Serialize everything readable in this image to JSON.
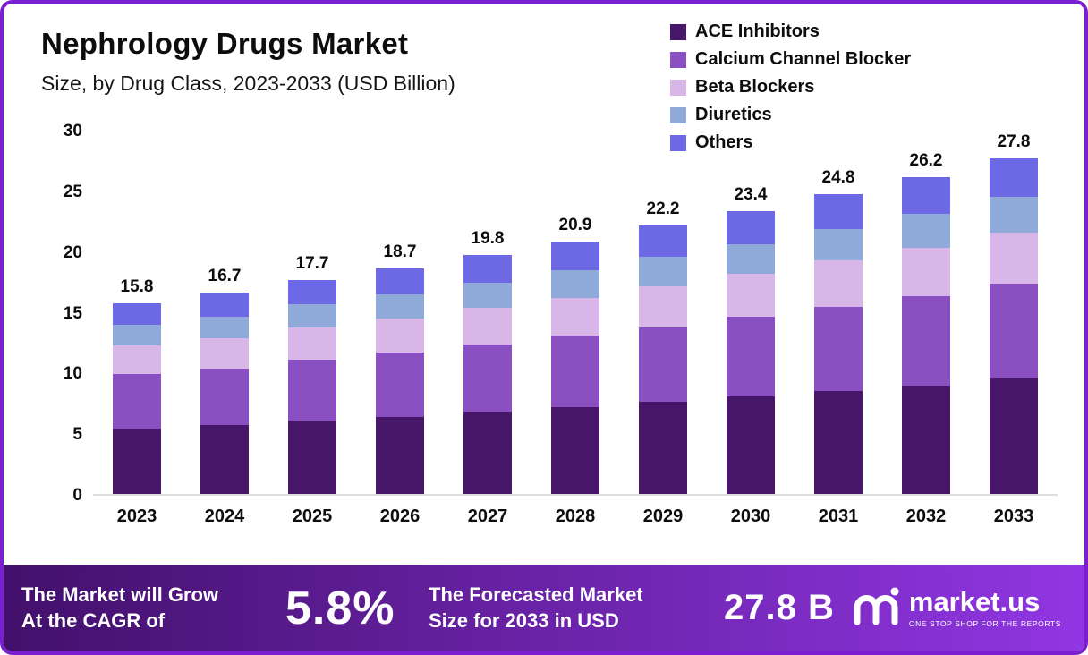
{
  "page": {
    "border_color": "#7a1fd0"
  },
  "header": {
    "title": "Nephrology Drugs Market",
    "subtitle": "Size, by Drug Class, 2023-2033 (USD Billion)"
  },
  "chart_data": {
    "type": "bar",
    "stacked": true,
    "title": "Nephrology Drugs Market Size, by Drug Class, 2023-2033 (USD Billion)",
    "categories": [
      "2023",
      "2024",
      "2025",
      "2026",
      "2027",
      "2028",
      "2029",
      "2030",
      "2031",
      "2032",
      "2033"
    ],
    "totals": [
      15.8,
      16.7,
      17.7,
      18.7,
      19.8,
      20.9,
      22.2,
      23.4,
      24.8,
      26.2,
      27.8
    ],
    "series": [
      {
        "name": "ACE Inhibitors",
        "color": "#461669",
        "values": [
          5.4,
          5.7,
          6.1,
          6.4,
          6.8,
          7.2,
          7.6,
          8.1,
          8.5,
          9.0,
          9.6
        ]
      },
      {
        "name": "Calcium Channel Blocker",
        "color": "#8a4fc0",
        "values": [
          4.5,
          4.7,
          5.0,
          5.3,
          5.6,
          5.9,
          6.2,
          6.6,
          7.0,
          7.4,
          7.8
        ]
      },
      {
        "name": "Beta Blockers",
        "color": "#d9b6e8",
        "values": [
          2.4,
          2.5,
          2.7,
          2.8,
          3.0,
          3.1,
          3.4,
          3.5,
          3.8,
          4.0,
          4.2
        ]
      },
      {
        "name": "Diuretics",
        "color": "#8fa9d9",
        "values": [
          1.7,
          1.8,
          1.9,
          2.0,
          2.1,
          2.3,
          2.4,
          2.5,
          2.6,
          2.8,
          3.0
        ]
      },
      {
        "name": "Others",
        "color": "#6d68e3",
        "values": [
          1.8,
          2.0,
          2.0,
          2.2,
          2.3,
          2.4,
          2.6,
          2.7,
          2.9,
          3.0,
          3.2
        ]
      }
    ],
    "ylim": [
      0,
      30
    ],
    "yticks": [
      0,
      5,
      10,
      15,
      20,
      25,
      30
    ],
    "grid": false,
    "legend_position": "top-right",
    "xlabel": "",
    "ylabel": ""
  },
  "banner": {
    "cagr_line1": "The Market will Grow",
    "cagr_line2": "At the CAGR of",
    "cagr_value": "5.8%",
    "forecast_line1": "The Forecasted Market",
    "forecast_line2": "Size for 2033 in USD",
    "forecast_value": "27.8 B",
    "brand_name": "market.us",
    "brand_tagline": "ONE STOP SHOP FOR THE REPORTS",
    "gradient_start": "#42106b",
    "gradient_end": "#9136e3"
  }
}
